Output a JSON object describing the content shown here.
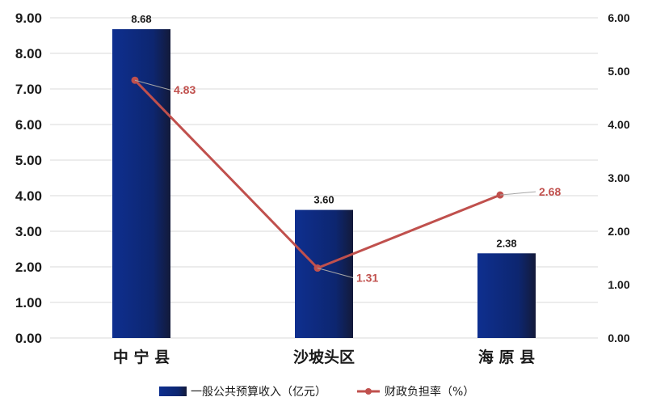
{
  "chart_data": {
    "type": "bar+line",
    "categories": [
      "中宁县",
      "沙坡头区",
      "海原县"
    ],
    "category_labels_shown": [
      "中 宁 县",
      "沙坡头区",
      "海 原 县"
    ],
    "series": [
      {
        "name": "一般公共预算收入（亿元）",
        "type": "bar",
        "axis": "left",
        "values": [
          8.68,
          3.6,
          2.38
        ],
        "value_labels": [
          "8.68",
          "3.60",
          "2.38"
        ],
        "color": "#0d2a7a"
      },
      {
        "name": "财政负担率（%）",
        "type": "line",
        "axis": "right",
        "values": [
          4.83,
          1.31,
          2.68
        ],
        "value_labels": [
          "4.83",
          "1.31",
          "2.68"
        ],
        "color": "#c0504d"
      }
    ],
    "y_left": {
      "min": 0,
      "max": 9,
      "step": 1,
      "ticks": [
        "0.00",
        "1.00",
        "2.00",
        "3.00",
        "4.00",
        "5.00",
        "6.00",
        "7.00",
        "8.00",
        "9.00"
      ]
    },
    "y_right": {
      "min": 0,
      "max": 6,
      "step": 1,
      "ticks": [
        "0.00",
        "1.00",
        "2.00",
        "3.00",
        "4.00",
        "5.00",
        "6.00"
      ]
    },
    "grid": true,
    "legend_position": "bottom"
  },
  "colors": {
    "bar_dark": "#0b1f5e",
    "bar_light": "#1a3a9a",
    "line": "#c0504d",
    "grid": "#d9d9d9"
  }
}
